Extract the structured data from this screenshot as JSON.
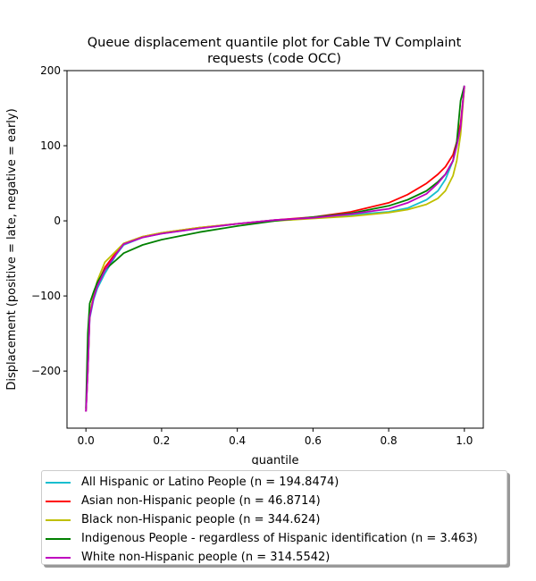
{
  "chart_data": {
    "type": "line",
    "title": "Queue displacement quantile plot for Cable TV Complaint requests (code OCC)",
    "title_lines": [
      "Queue displacement quantile plot for Cable TV Complaint",
      "requests (code OCC)"
    ],
    "xlabel": "quantile",
    "ylabel": "Displacement (positive = late, negative = early)",
    "xlim": [
      -0.05,
      1.05
    ],
    "ylim": [
      -276,
      200
    ],
    "xticks": [
      0.0,
      0.2,
      0.4,
      0.6,
      0.8,
      1.0
    ],
    "xtick_labels": [
      "0.0",
      "0.2",
      "0.4",
      "0.6",
      "0.8",
      "1.0"
    ],
    "yticks": [
      -200,
      -100,
      0,
      100,
      200
    ],
    "ytick_labels": [
      "−200",
      "−100",
      "0",
      "100",
      "200"
    ],
    "grid": false,
    "legend_position": "below",
    "x": [
      0.0,
      0.005,
      0.01,
      0.02,
      0.03,
      0.05,
      0.08,
      0.1,
      0.15,
      0.2,
      0.3,
      0.4,
      0.5,
      0.6,
      0.7,
      0.8,
      0.85,
      0.9,
      0.93,
      0.95,
      0.97,
      0.98,
      0.99,
      1.0
    ],
    "series": [
      {
        "name": "All Hispanic or Latino People (n = 194.8474)",
        "color": "#17becf",
        "values": [
          -254,
          -200,
          -130,
          -105,
          -90,
          -70,
          -45,
          -32,
          -22,
          -17,
          -10,
          -4,
          1,
          4,
          8,
          12,
          17,
          28,
          40,
          55,
          80,
          100,
          125,
          178
        ]
      },
      {
        "name": "Asian non-Hispanic people (n = 46.8714)",
        "color": "#ff0000",
        "values": [
          -254,
          -200,
          -125,
          -100,
          -85,
          -62,
          -42,
          -30,
          -21,
          -16,
          -9,
          -4,
          1,
          5,
          12,
          24,
          35,
          50,
          62,
          72,
          88,
          105,
          130,
          178
        ]
      },
      {
        "name": "Black non-Hispanic people (n = 344.624)",
        "color": "#bfbf00",
        "values": [
          -250,
          -195,
          -125,
          -100,
          -80,
          -55,
          -40,
          -30,
          -21,
          -16,
          -9,
          -4,
          0,
          3,
          6,
          11,
          15,
          22,
          30,
          40,
          60,
          80,
          115,
          178
        ]
      },
      {
        "name": "Indigenous People - regardless of Hispanic identification (n = 3.463)",
        "color": "#008000",
        "values": [
          -250,
          -150,
          -110,
          -95,
          -82,
          -65,
          -52,
          -43,
          -32,
          -25,
          -15,
          -7,
          0,
          5,
          10,
          20,
          28,
          40,
          52,
          62,
          80,
          105,
          160,
          180
        ]
      },
      {
        "name": "White non-Hispanic people (n = 314.5542)",
        "color": "#bf00bf",
        "values": [
          -254,
          -200,
          -128,
          -103,
          -87,
          -66,
          -44,
          -31,
          -22,
          -17,
          -10,
          -4,
          1,
          4,
          9,
          16,
          24,
          36,
          50,
          62,
          80,
          100,
          125,
          180
        ]
      }
    ]
  }
}
